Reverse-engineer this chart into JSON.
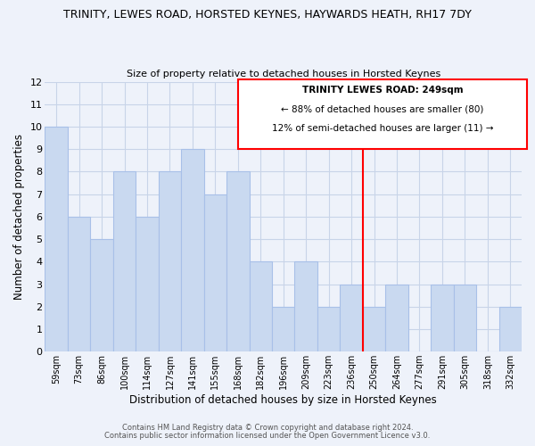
{
  "title": "TRINITY, LEWES ROAD, HORSTED KEYNES, HAYWARDS HEATH, RH17 7DY",
  "subtitle": "Size of property relative to detached houses in Horsted Keynes",
  "xlabel": "Distribution of detached houses by size in Horsted Keynes",
  "ylabel": "Number of detached properties",
  "bin_labels": [
    "59sqm",
    "73sqm",
    "86sqm",
    "100sqm",
    "114sqm",
    "127sqm",
    "141sqm",
    "155sqm",
    "168sqm",
    "182sqm",
    "196sqm",
    "209sqm",
    "223sqm",
    "236sqm",
    "250sqm",
    "264sqm",
    "277sqm",
    "291sqm",
    "305sqm",
    "318sqm",
    "332sqm"
  ],
  "bar_heights": [
    10,
    6,
    5,
    8,
    6,
    8,
    9,
    7,
    8,
    4,
    2,
    4,
    2,
    3,
    2,
    3,
    0,
    3,
    3,
    0,
    2
  ],
  "bar_color": "#c9d9f0",
  "bar_edge_color": "#a8c0e8",
  "grid_color": "#c8d4e8",
  "annotation_title": "TRINITY LEWES ROAD: 249sqm",
  "annotation_line1": "← 88% of detached houses are smaller (80)",
  "annotation_line2": "12% of semi-detached houses are larger (11) →",
  "red_line_x": 14,
  "ylim": [
    0,
    12
  ],
  "yticks": [
    0,
    1,
    2,
    3,
    4,
    5,
    6,
    7,
    8,
    9,
    10,
    11,
    12
  ],
  "footer1": "Contains HM Land Registry data © Crown copyright and database right 2024.",
  "footer2": "Contains public sector information licensed under the Open Government Licence v3.0.",
  "background_color": "#eef2fa"
}
